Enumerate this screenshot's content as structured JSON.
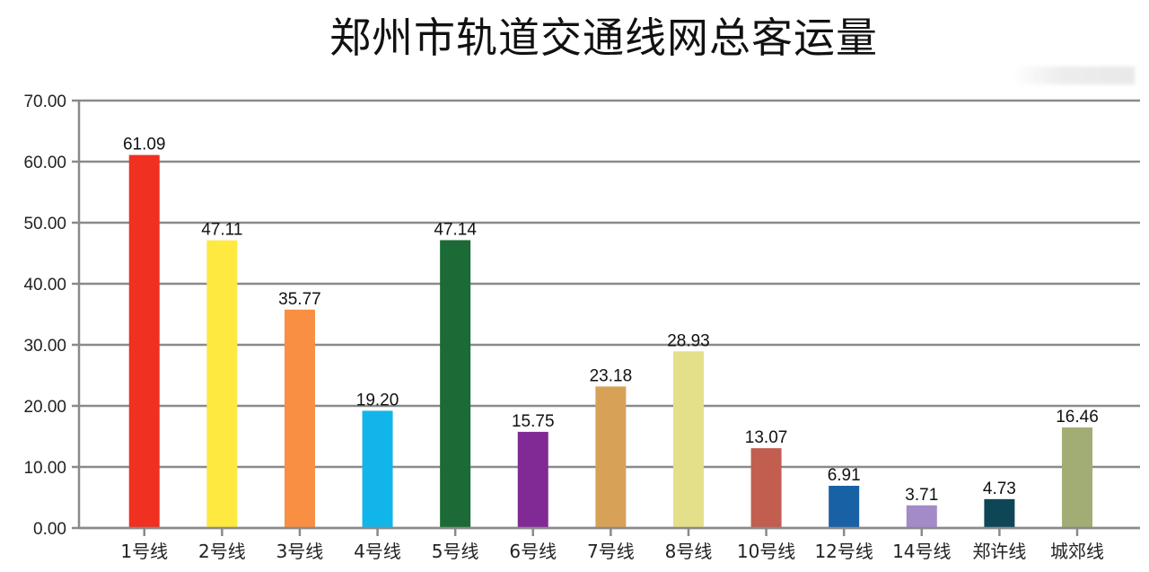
{
  "title": "郑州市轨道交通线网总客运量",
  "chart_data": {
    "type": "bar",
    "title": "郑州市轨道交通线网总客运量",
    "xlabel": "",
    "ylabel": "",
    "ylim": [
      0,
      70
    ],
    "yticks": [
      "0.00",
      "10.00",
      "20.00",
      "30.00",
      "40.00",
      "50.00",
      "60.00",
      "70.00"
    ],
    "grid": true,
    "legend": false,
    "categories": [
      "1号线",
      "2号线",
      "3号线",
      "4号线",
      "5号线",
      "6号线",
      "7号线",
      "8号线",
      "10号线",
      "12号线",
      "14号线",
      "郑许线",
      "城郊线"
    ],
    "values": [
      61.09,
      47.11,
      35.77,
      19.2,
      47.14,
      15.75,
      23.18,
      28.93,
      13.07,
      6.91,
      3.71,
      4.73,
      16.46
    ],
    "value_labels": [
      "61.09",
      "47.11",
      "35.77",
      "19.20",
      "47.14",
      "15.75",
      "23.18",
      "28.93",
      "13.07",
      "6.91",
      "3.71",
      "4.73",
      "16.46"
    ],
    "colors": [
      "#f03020",
      "#fde940",
      "#f98f42",
      "#12b5ea",
      "#1c6a36",
      "#812a96",
      "#d7a258",
      "#e3e089",
      "#c15e4f",
      "#1861a4",
      "#a28bc7",
      "#0e4656",
      "#a1ad74"
    ]
  },
  "colors": {
    "axis": "#8a8a8a",
    "grid": "#8a8a8a"
  }
}
